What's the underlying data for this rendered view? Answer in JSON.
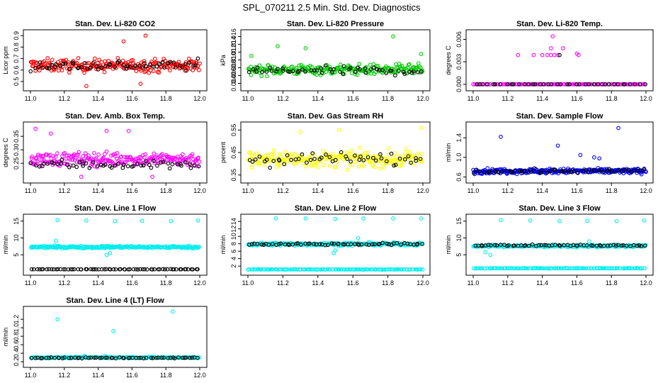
{
  "page": {
    "title": "SPL_070211  2.5 Min. Std. Dev. Diagnostics"
  },
  "chart_data": [
    {
      "type": "scatter",
      "title": "Stan. Dev. Li-820 CO2",
      "xlabel": "",
      "ylabel": "Licor ppm",
      "xlim": [
        11.0,
        12.0
      ],
      "ylim": [
        0.45,
        0.92
      ],
      "xticks": [
        "11.0",
        "11.2",
        "11.4",
        "11.6",
        "11.8",
        "12.0"
      ],
      "yticks": [
        "0.5",
        "0.6",
        "0.7",
        "0.8",
        "0.9"
      ],
      "series": [
        {
          "color": "#ff0000",
          "base": 0.64,
          "spread": 0.055,
          "n": 230,
          "outliers": [
            [
              11.68,
              0.9
            ],
            [
              11.33,
              0.46
            ],
            [
              11.65,
              0.48
            ],
            [
              11.55,
              0.85
            ]
          ]
        },
        {
          "color": "#000000",
          "base": 0.64,
          "spread": 0.045,
          "n": 60
        }
      ]
    },
    {
      "type": "scatter",
      "title": "Stan. Dev. Li-820 Pressure",
      "xlabel": "",
      "ylabel": "kPa",
      "xlim": [
        11.0,
        12.0
      ],
      "ylim": [
        0.003,
        0.0168
      ],
      "xticks": [
        "11.0",
        "11.2",
        "11.4",
        "11.6",
        "11.8",
        "12.0"
      ],
      "yticks": [
        "0.004",
        "0.006",
        "0.008",
        "0.010",
        "0.012",
        "0.014",
        "0.016"
      ],
      "series": [
        {
          "color": "#00cc00",
          "base": 0.0075,
          "spread": 0.0013,
          "n": 230,
          "outliers": [
            [
              11.83,
              0.016
            ],
            [
              11.17,
              0.0135
            ],
            [
              11.33,
              0.013
            ],
            [
              11.99,
              0.0115
            ],
            [
              11.02,
              0.011
            ]
          ]
        },
        {
          "color": "#000000",
          "base": 0.0072,
          "spread": 0.0011,
          "n": 55
        }
      ]
    },
    {
      "type": "scatter",
      "title": "Stan. Dev. Li-820 Temp.",
      "xlabel": "",
      "ylabel": "degrees C",
      "xlim": [
        11.0,
        12.0
      ],
      "ylim": [
        -0.0004,
        0.0068
      ],
      "xticks": [
        "11.0",
        "11.2",
        "11.4",
        "11.6",
        "11.8",
        "12.0"
      ],
      "yticks": [
        "0.000",
        "0.003",
        "0.006"
      ],
      "series": [
        {
          "color": "#ff00ff",
          "base": 0.0,
          "spread": 0.0,
          "n": 120,
          "outliers": [
            [
              11.35,
              0.0039
            ],
            [
              11.4,
              0.0039
            ],
            [
              11.43,
              0.0039
            ],
            [
              11.45,
              0.0039
            ],
            [
              11.47,
              0.0039
            ],
            [
              11.49,
              0.0039
            ],
            [
              11.45,
              0.0048
            ],
            [
              11.52,
              0.0048
            ],
            [
              11.26,
              0.0039
            ],
            [
              11.61,
              0.0039
            ],
            [
              11.6,
              0.0041
            ],
            [
              11.46,
              0.0064
            ]
          ]
        },
        {
          "color": "#000000",
          "base": 0.0,
          "spread": 0.0,
          "n": 40,
          "outliers": [
            [
              11.5,
              0.0039
            ]
          ]
        }
      ]
    },
    {
      "type": "scatter",
      "title": "Stan. Dev. Amb. Box Temp.",
      "xlabel": "",
      "ylabel": "degrees C",
      "xlim": [
        11.0,
        12.0
      ],
      "ylim": [
        0.19,
        0.39
      ],
      "xticks": [
        "11.0",
        "11.2",
        "11.4",
        "11.6",
        "11.8",
        "12.0"
      ],
      "yticks": [
        "0.25",
        "0.30",
        "0.35"
      ],
      "series": [
        {
          "color": "#ff00ff",
          "base": 0.265,
          "spread": 0.025,
          "n": 230,
          "outliers": [
            [
              11.03,
              0.378
            ],
            [
              11.45,
              0.37
            ],
            [
              11.58,
              0.37
            ],
            [
              11.12,
              0.36
            ],
            [
              11.3,
              0.2
            ],
            [
              11.72,
              0.2
            ]
          ]
        },
        {
          "color": "#000000",
          "base": 0.245,
          "spread": 0.018,
          "n": 55
        }
      ]
    },
    {
      "type": "scatter",
      "title": "Stan. Dev. Gas Stream RH",
      "xlabel": "",
      "ylabel": "percent",
      "xlim": [
        11.0,
        12.0
      ],
      "ylim": [
        0.33,
        0.57
      ],
      "xticks": [
        "11.0",
        "11.2",
        "11.4",
        "11.6",
        "11.8",
        "12.0"
      ],
      "yticks": [
        "0.35",
        "0.45",
        "0.55"
      ],
      "series": [
        {
          "color": "#ffff00",
          "base": 0.42,
          "spread": 0.035,
          "n": 230,
          "outliers": [
            [
              11.99,
              0.56
            ],
            [
              11.52,
              0.55
            ],
            [
              11.3,
              0.54
            ]
          ]
        },
        {
          "color": "#000000",
          "base": 0.42,
          "spread": 0.03,
          "n": 50
        }
      ]
    },
    {
      "type": "scatter",
      "title": "Stan. Dev. Sample Flow",
      "xlabel": "",
      "ylabel": "ml/min",
      "xlim": [
        11.0,
        12.0
      ],
      "ylim": [
        0.55,
        1.65
      ],
      "xticks": [
        "11.0",
        "11.2",
        "11.4",
        "11.6",
        "11.8",
        "12.0"
      ],
      "yticks": [
        "0.6",
        "1.0",
        "1.4"
      ],
      "series": [
        {
          "color": "#0000ff",
          "base": 0.72,
          "spread": 0.05,
          "n": 260,
          "outliers": [
            [
              11.84,
              1.6
            ],
            [
              11.16,
              1.42
            ],
            [
              11.49,
              1.24
            ],
            [
              11.62,
              1.05
            ],
            [
              11.7,
              1.0
            ],
            [
              11.73,
              0.98
            ]
          ]
        },
        {
          "color": "#000000",
          "base": 0.72,
          "spread": 0.04,
          "n": 55
        }
      ]
    },
    {
      "type": "scatter",
      "title": "Stan. Dev. Line 1 Flow",
      "xlabel": "",
      "ylabel": "ml/min",
      "xlim": [
        11.0,
        12.0
      ],
      "ylim": [
        0.0,
        16.0
      ],
      "xticks": [
        "11.0",
        "11.2",
        "11.4",
        "11.6",
        "11.8",
        "12.0"
      ],
      "yticks": [
        "5",
        "10",
        "15"
      ],
      "series": [
        {
          "color": "#00eeee",
          "base": 7.3,
          "spread": 0.35,
          "n": 230,
          "outliers": [
            [
              11.16,
              15.3
            ],
            [
              11.33,
              15.2
            ],
            [
              11.5,
              15.0
            ],
            [
              11.66,
              15.1
            ],
            [
              11.83,
              15.0
            ],
            [
              11.99,
              15.2
            ],
            [
              11.15,
              9.2
            ],
            [
              11.47,
              5.5
            ],
            [
              11.45,
              5.0
            ]
          ]
        },
        {
          "color": "#000000",
          "base": 0.7,
          "spread": 0.05,
          "n": 70
        }
      ]
    },
    {
      "type": "scatter",
      "title": "Stan. Dev. Line 2 Flow",
      "xlabel": "",
      "ylabel": "ml/min",
      "xlim": [
        11.0,
        12.0
      ],
      "ylim": [
        0.5,
        15.0
      ],
      "xticks": [
        "11.0",
        "11.2",
        "11.4",
        "11.6",
        "11.8",
        "12.0"
      ],
      "yticks": [
        "2",
        "4",
        "6",
        "8",
        "10",
        "12",
        "14"
      ],
      "series": [
        {
          "color": "#00eeee",
          "base": 7.9,
          "spread": 0.4,
          "n": 230,
          "outliers": [
            [
              11.16,
              14.8
            ],
            [
              11.33,
              14.8
            ],
            [
              11.5,
              14.7
            ],
            [
              11.66,
              14.8
            ],
            [
              11.83,
              14.8
            ],
            [
              11.99,
              14.8
            ],
            [
              11.63,
              9.5
            ],
            [
              11.49,
              5.5
            ],
            [
              11.5,
              6.2
            ]
          ]
        },
        {
          "color": "#00eeee",
          "base": 1.1,
          "spread": 0.05,
          "n": 120
        },
        {
          "color": "#000000",
          "base": 7.9,
          "spread": 0.3,
          "n": 60
        }
      ]
    },
    {
      "type": "scatter",
      "title": "Stan. Dev. Line 3 Flow",
      "xlabel": "",
      "ylabel": "ml/min",
      "xlim": [
        11.0,
        12.0
      ],
      "ylim": [
        0.0,
        16.0
      ],
      "xticks": [
        "11.0",
        "11.2",
        "11.4",
        "11.6",
        "11.8",
        "12.0"
      ],
      "yticks": [
        "5",
        "10",
        "15"
      ],
      "series": [
        {
          "color": "#00eeee",
          "base": 7.6,
          "spread": 0.35,
          "n": 230,
          "outliers": [
            [
              11.16,
              15.3
            ],
            [
              11.33,
              15.2
            ],
            [
              11.5,
              15.0
            ],
            [
              11.66,
              15.1
            ],
            [
              11.83,
              15.0
            ],
            [
              11.99,
              15.2
            ],
            [
              11.07,
              5.8
            ],
            [
              11.1,
              5.0
            ],
            [
              11.67,
              9.0
            ]
          ]
        },
        {
          "color": "#00eeee",
          "base": 1.0,
          "spread": 0.05,
          "n": 120
        },
        {
          "color": "#000000",
          "base": 7.8,
          "spread": 0.25,
          "n": 60
        }
      ]
    },
    {
      "type": "scatter",
      "title": "Stan. Dev. Line 4 (LT) Flow",
      "xlabel": "",
      "ylabel": "ml/min",
      "xlim": [
        11.0,
        12.0
      ],
      "ylim": [
        0.15,
        1.42
      ],
      "xticks": [
        "11.0",
        "11.2",
        "11.4",
        "11.6",
        "11.8",
        "12.0"
      ],
      "yticks": [
        "0.2",
        "0.4",
        "0.6",
        "0.8",
        "1.0",
        "1.2"
      ],
      "series": [
        {
          "color": "#00eeee",
          "base": 0.3,
          "spread": 0.015,
          "n": 200,
          "outliers": [
            [
              11.84,
              1.38
            ],
            [
              11.16,
              1.2
            ],
            [
              11.49,
              0.92
            ],
            [
              11.32,
              0.34
            ],
            [
              11.44,
              0.34
            ]
          ]
        },
        {
          "color": "#000000",
          "base": 0.29,
          "spread": 0.012,
          "n": 60
        }
      ]
    }
  ]
}
